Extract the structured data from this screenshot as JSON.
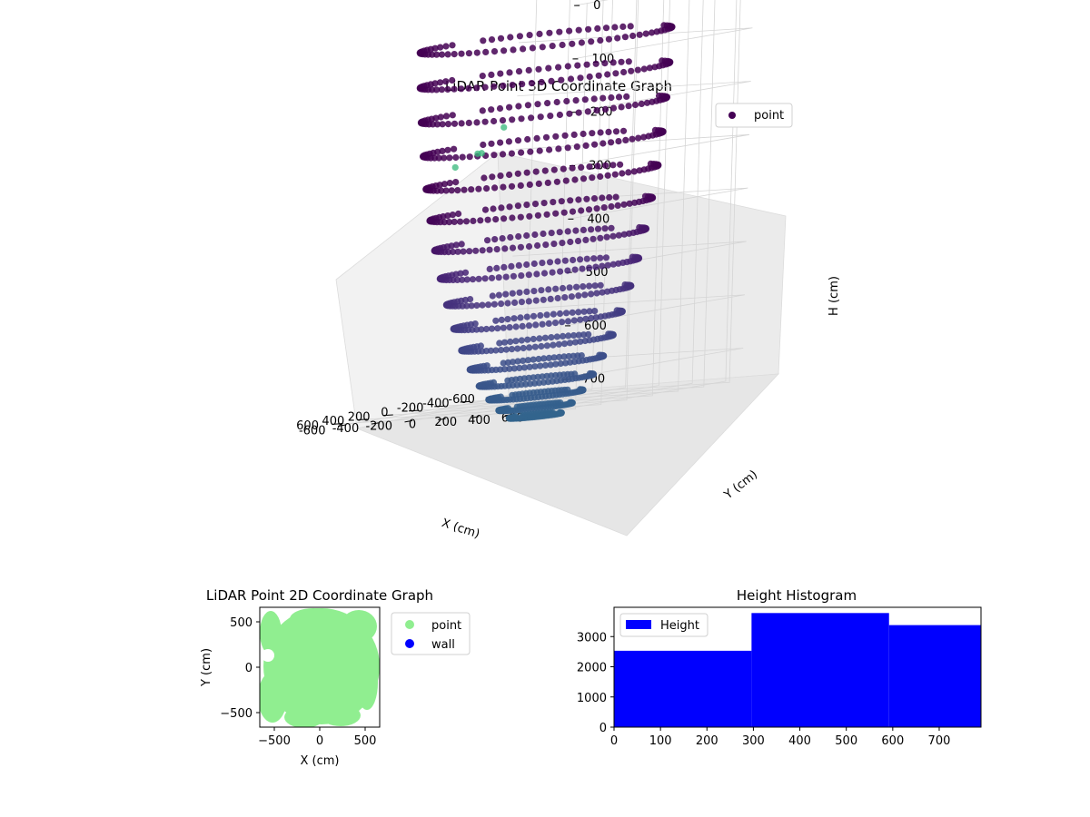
{
  "figure": {},
  "chart_data": [
    {
      "type": "scatter",
      "projection": "3d",
      "title": "LiDAR Point 3D Coordinate Graph",
      "xlabel": "X (cm)",
      "ylabel": "Y (cm)",
      "zlabel": "H (cm)",
      "xlim": [
        -700,
        700
      ],
      "ylim": [
        -700,
        700
      ],
      "zlim": [
        760,
        0
      ],
      "zaxis_inverted": true,
      "x_ticks": [
        "-600",
        "-400",
        "-200",
        "0",
        "200",
        "400",
        "600"
      ],
      "y_ticks": [
        "-600",
        "-400",
        "-200",
        "0",
        "200",
        "400",
        "600"
      ],
      "z_ticks": [
        "0",
        "100",
        "200",
        "300",
        "400",
        "500",
        "600",
        "700"
      ],
      "grid": true,
      "legend": {
        "placement": "top-right",
        "entries": [
          "point"
        ]
      },
      "colormap": "viridis",
      "series": [
        {
          "name": "point",
          "shape": "hemispherical bowl of LiDAR returns, radius about 600 cm, depth about 760 cm",
          "color": "#440154",
          "outliers": [
            {
              "x": -700,
              "y": -650,
              "h": 0
            },
            {
              "x": -420,
              "y": -560,
              "h": 250
            },
            {
              "x": -200,
              "y": -520,
              "h": 290
            },
            {
              "x": -560,
              "y": -820,
              "h": 300
            },
            {
              "x": -440,
              "y": -860,
              "h": 320
            }
          ]
        }
      ]
    },
    {
      "type": "scatter",
      "title": "LiDAR Point 2D Coordinate Graph",
      "xlabel": "X (cm)",
      "ylabel": "Y (cm)",
      "xlim": [
        -660,
        660
      ],
      "ylim": [
        -660,
        660
      ],
      "x_ticks": [
        "−500",
        "0",
        "500"
      ],
      "y_ticks": [
        "−500",
        "0",
        "500"
      ],
      "legend": {
        "placement": "outside right",
        "entries": [
          "point",
          "wall"
        ]
      },
      "series": [
        {
          "name": "point",
          "color": "#90ee90",
          "region": "disk of radius about 600 cm centred on origin"
        },
        {
          "name": "wall",
          "color": "#0000ff",
          "values": []
        }
      ]
    },
    {
      "type": "bar",
      "histogram": true,
      "title": "Height Histogram",
      "xlim": [
        0,
        790
      ],
      "ylim": [
        0,
        3970
      ],
      "x_ticks": [
        "0",
        "100",
        "200",
        "300",
        "400",
        "500",
        "600",
        "700"
      ],
      "y_ticks": [
        "0",
        "1000",
        "2000",
        "3000"
      ],
      "legend": {
        "placement": "top-left",
        "entries": [
          "Height"
        ]
      },
      "series": [
        {
          "name": "Height",
          "color": "#0000ff",
          "bins": [
            {
              "from": 0,
              "to": 296,
              "count": 2530
            },
            {
              "from": 296,
              "to": 592,
              "count": 3780
            },
            {
              "from": 592,
              "to": 790,
              "count": 3380
            }
          ]
        }
      ]
    }
  ]
}
